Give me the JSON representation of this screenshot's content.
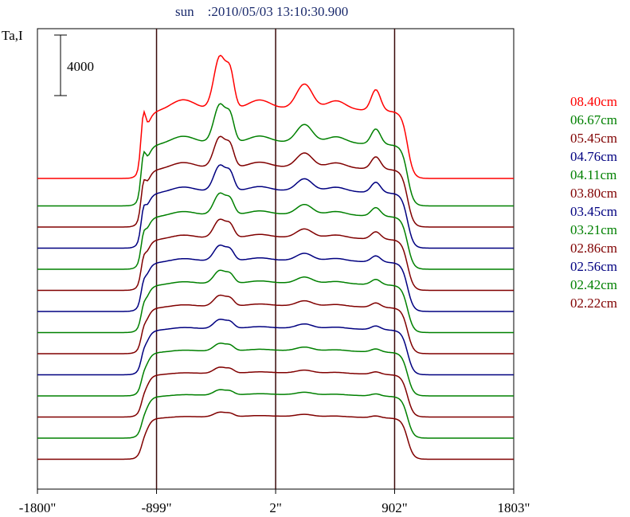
{
  "chart_data": {
    "type": "line",
    "title": "sun    :2010/05/03 13:10:30.900",
    "ylabel": "Ta,I",
    "scale_bar_label": "4000",
    "scale_bar_value": 4000,
    "x_ticks": [
      {
        "value": -1800,
        "label": "-1800\""
      },
      {
        "value": -899,
        "label": "-899\""
      },
      {
        "value": 2,
        "label": "2\""
      },
      {
        "value": 902,
        "label": "902\""
      },
      {
        "value": 1803,
        "label": "1803\""
      }
    ],
    "xlim": [
      -1800,
      1803
    ],
    "vertical_lines": [
      -899,
      2,
      902
    ],
    "legend_position": "right",
    "series": [
      {
        "name": "08.40cm",
        "color": "#ff0000",
        "profile_scale": 1.0
      },
      {
        "name": "06.67cm",
        "color": "#008000",
        "profile_scale": 0.8
      },
      {
        "name": "05.45cm",
        "color": "#800000",
        "profile_scale": 0.68
      },
      {
        "name": "04.76cm",
        "color": "#000080",
        "profile_scale": 0.6
      },
      {
        "name": "04.11cm",
        "color": "#008000",
        "profile_scale": 0.52
      },
      {
        "name": "03.80cm",
        "color": "#800000",
        "profile_scale": 0.46
      },
      {
        "name": "03.45cm",
        "color": "#000080",
        "profile_scale": 0.4
      },
      {
        "name": "03.21cm",
        "color": "#008000",
        "profile_scale": 0.35
      },
      {
        "name": "02.86cm",
        "color": "#800000",
        "profile_scale": 0.3
      },
      {
        "name": "02.56cm",
        "color": "#000080",
        "profile_scale": 0.26
      },
      {
        "name": "02.42cm",
        "color": "#008000",
        "profile_scale": 0.22
      },
      {
        "name": "02.22cm",
        "color": "#800000",
        "profile_scale": 0.18
      }
    ],
    "extra_curves": [
      {
        "color": "#008000",
        "profile_scale": 0.16
      },
      {
        "color": "#800000",
        "profile_scale": 0.14
      }
    ]
  }
}
